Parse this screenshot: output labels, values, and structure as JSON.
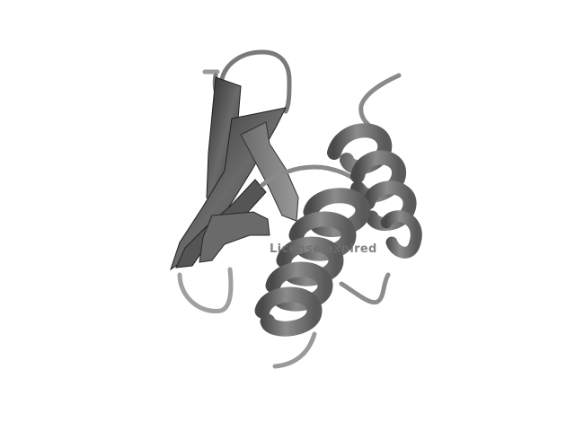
{
  "viewer": {
    "background": "#ffffff",
    "watermark_text": "License expired",
    "colors": {
      "ribbon_dark": "#3a3a3a",
      "ribbon_mid": "#6f6f6f",
      "ribbon_light": "#a8a8a8",
      "coil": "#8a8a8a",
      "watermark": "#6e6e6e"
    }
  }
}
